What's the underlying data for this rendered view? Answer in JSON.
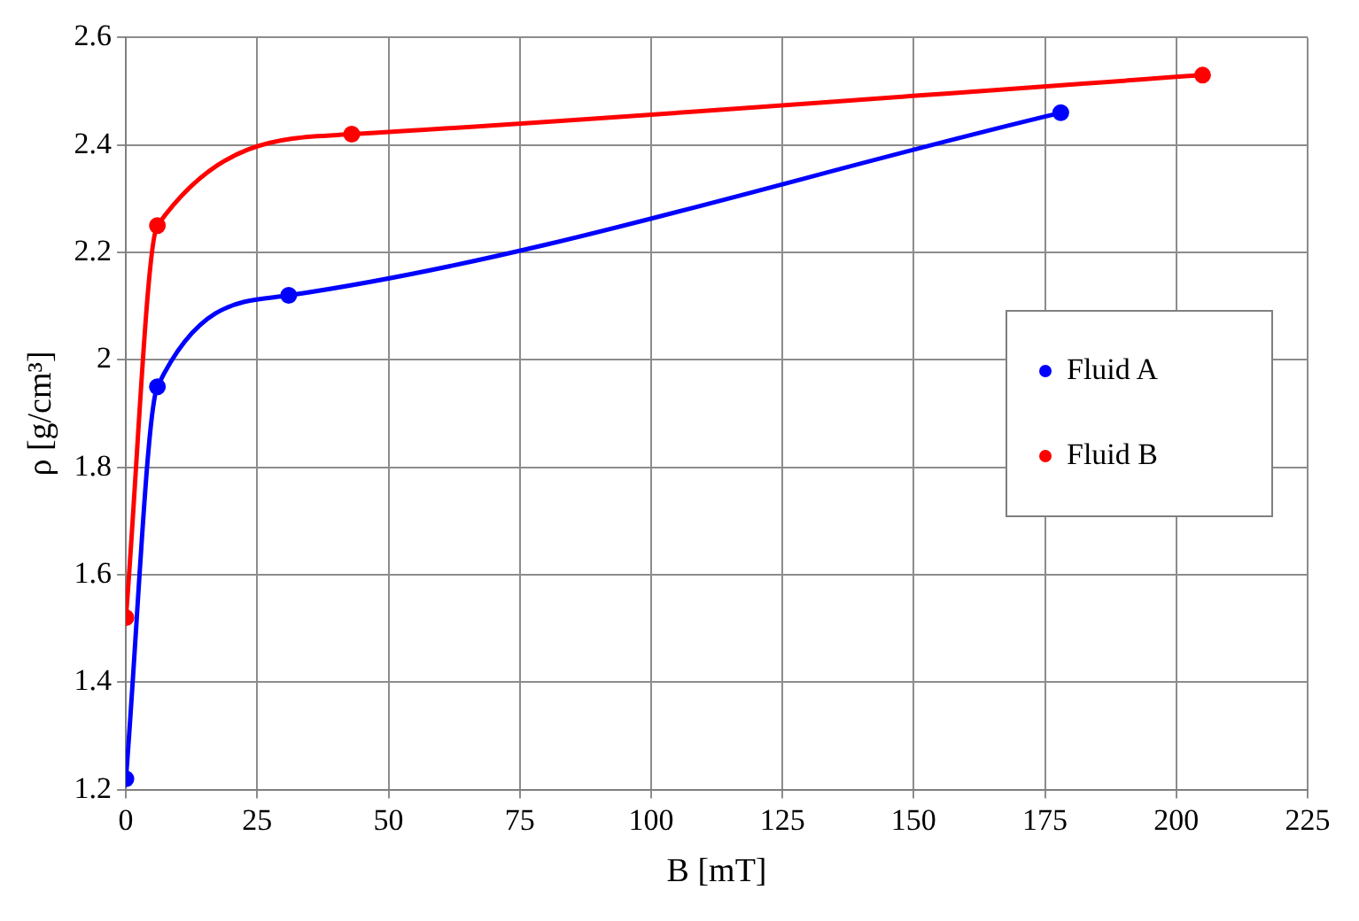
{
  "chart_data": {
    "type": "line",
    "xlabel": "B [mT]",
    "ylabel": "ρ [g/cm³]",
    "xlim": [
      0,
      225
    ],
    "xticks": [
      0,
      25,
      50,
      75,
      100,
      125,
      150,
      175,
      200,
      225
    ],
    "ylim": [
      1.2,
      2.6
    ],
    "yticks": [
      1.2,
      1.4,
      1.6,
      1.8,
      2,
      2.2,
      2.4,
      2.6
    ],
    "grid": true,
    "legend": "right",
    "marker": "circle",
    "line_style": "solid",
    "series": [
      {
        "name": "Fluid A",
        "color": "#0000ff",
        "x": [
          0,
          6,
          31,
          178
        ],
        "values": [
          1.22,
          1.95,
          2.12,
          2.46
        ]
      },
      {
        "name": "Fluid B",
        "color": "#ff0000",
        "x": [
          0,
          6,
          43,
          205
        ],
        "values": [
          1.52,
          2.25,
          2.42,
          2.53
        ]
      }
    ]
  }
}
